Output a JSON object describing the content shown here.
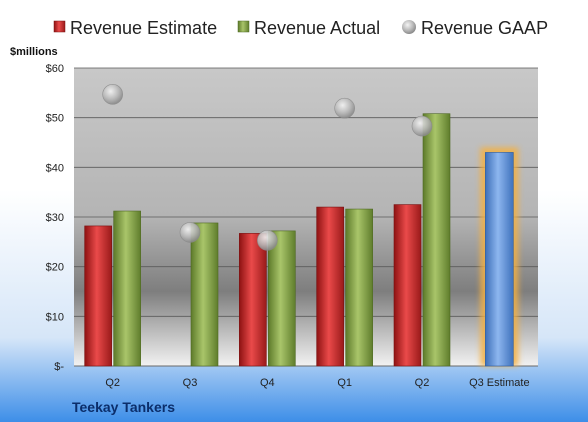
{
  "chart_data": {
    "type": "bar",
    "company": "Teekay Tankers",
    "ylabel": "$millions",
    "ylim": [
      0,
      60
    ],
    "yticks": [
      0,
      10,
      20,
      30,
      40,
      50,
      60
    ],
    "ytick_labels": [
      "$-",
      "$10",
      "$20",
      "$30",
      "$40",
      "$50",
      "$60"
    ],
    "categories": [
      "Q2",
      "Q3",
      "Q4",
      "Q1",
      "Q2",
      "Q3 Estimate"
    ],
    "series": [
      {
        "name": "Revenue Estimate",
        "kind": "bar",
        "color": "#d42a2a",
        "values": [
          28.2,
          null,
          26.7,
          32.0,
          32.5,
          null
        ]
      },
      {
        "name": "Revenue Actual",
        "kind": "bar",
        "color": "#8aa84a",
        "values": [
          31.2,
          28.8,
          27.2,
          31.6,
          50.8,
          null
        ]
      },
      {
        "name": "Revenue GAAP",
        "kind": "marker",
        "color": "#b0b0b0",
        "values": [
          54.7,
          26.9,
          25.3,
          51.9,
          48.3,
          null
        ]
      }
    ],
    "forecast": {
      "category": "Q3 Estimate",
      "value": 43.0,
      "color": "#5b8fd6",
      "glow_color": "#f5b041"
    },
    "legend_position": "top",
    "grid": true
  }
}
